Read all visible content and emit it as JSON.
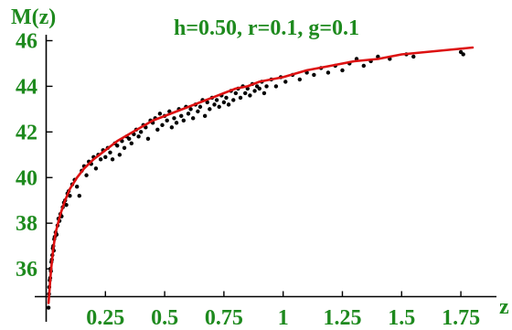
{
  "chart_data": {
    "type": "scatter",
    "title": "h=0.50, r=0.1, g=0.1",
    "ylabel": "M(z)",
    "xlabel": "z",
    "xlim": [
      0,
      1.85
    ],
    "ylim": [
      33.8,
      46.1
    ],
    "x_ticks": [
      "0.25",
      "0.5",
      "0.75",
      "1",
      "1.25",
      "1.5",
      "1.75"
    ],
    "y_ticks": [
      "36",
      "38",
      "40",
      "42",
      "44",
      "46"
    ],
    "colors": {
      "label": "#1e8a1e",
      "fit": "#dd1111",
      "points": "#000000",
      "axis": "#000000"
    },
    "series": [
      {
        "kind": "points",
        "points": [
          [
            0.01,
            34.3
          ],
          [
            0.012,
            34.9
          ],
          [
            0.013,
            35.2
          ],
          [
            0.015,
            35.5
          ],
          [
            0.017,
            35.6
          ],
          [
            0.018,
            36.0
          ],
          [
            0.02,
            35.9
          ],
          [
            0.022,
            36.3
          ],
          [
            0.024,
            36.4
          ],
          [
            0.026,
            36.6
          ],
          [
            0.028,
            36.9
          ],
          [
            0.03,
            37.0
          ],
          [
            0.032,
            36.8
          ],
          [
            0.034,
            37.3
          ],
          [
            0.036,
            37.4
          ],
          [
            0.04,
            37.6
          ],
          [
            0.044,
            37.5
          ],
          [
            0.048,
            37.9
          ],
          [
            0.052,
            38.2
          ],
          [
            0.056,
            38.1
          ],
          [
            0.06,
            38.4
          ],
          [
            0.065,
            38.3
          ],
          [
            0.07,
            38.7
          ],
          [
            0.075,
            38.9
          ],
          [
            0.08,
            39.0
          ],
          [
            0.085,
            38.8
          ],
          [
            0.09,
            39.3
          ],
          [
            0.095,
            39.4
          ],
          [
            0.1,
            39.2
          ],
          [
            0.11,
            39.7
          ],
          [
            0.12,
            39.9
          ],
          [
            0.13,
            39.6
          ],
          [
            0.14,
            39.2
          ],
          [
            0.15,
            40.3
          ],
          [
            0.16,
            40.5
          ],
          [
            0.17,
            40.1
          ],
          [
            0.18,
            40.7
          ],
          [
            0.19,
            40.6
          ],
          [
            0.2,
            40.9
          ],
          [
            0.21,
            40.4
          ],
          [
            0.22,
            41.0
          ],
          [
            0.23,
            40.8
          ],
          [
            0.24,
            41.2
          ],
          [
            0.25,
            40.9
          ],
          [
            0.26,
            41.3
          ],
          [
            0.27,
            41.1
          ],
          [
            0.28,
            40.8
          ],
          [
            0.29,
            41.5
          ],
          [
            0.3,
            41.4
          ],
          [
            0.31,
            41.0
          ],
          [
            0.32,
            41.6
          ],
          [
            0.33,
            41.3
          ],
          [
            0.34,
            41.8
          ],
          [
            0.35,
            41.7
          ],
          [
            0.36,
            41.5
          ],
          [
            0.37,
            41.9
          ],
          [
            0.38,
            42.1
          ],
          [
            0.39,
            41.8
          ],
          [
            0.4,
            42.0
          ],
          [
            0.41,
            42.3
          ],
          [
            0.42,
            42.2
          ],
          [
            0.43,
            41.7
          ],
          [
            0.44,
            42.5
          ],
          [
            0.45,
            42.4
          ],
          [
            0.46,
            42.6
          ],
          [
            0.47,
            42.1
          ],
          [
            0.48,
            42.8
          ],
          [
            0.49,
            42.3
          ],
          [
            0.5,
            42.7
          ],
          [
            0.51,
            42.5
          ],
          [
            0.52,
            42.9
          ],
          [
            0.53,
            42.2
          ],
          [
            0.54,
            42.6
          ],
          [
            0.55,
            42.4
          ],
          [
            0.56,
            43.0
          ],
          [
            0.57,
            42.7
          ],
          [
            0.58,
            42.5
          ],
          [
            0.59,
            43.1
          ],
          [
            0.6,
            42.8
          ],
          [
            0.61,
            43.0
          ],
          [
            0.62,
            42.6
          ],
          [
            0.63,
            43.2
          ],
          [
            0.64,
            42.9
          ],
          [
            0.65,
            43.1
          ],
          [
            0.66,
            43.4
          ],
          [
            0.67,
            42.7
          ],
          [
            0.68,
            43.3
          ],
          [
            0.69,
            43.0
          ],
          [
            0.7,
            43.5
          ],
          [
            0.71,
            43.2
          ],
          [
            0.72,
            43.4
          ],
          [
            0.73,
            43.1
          ],
          [
            0.74,
            43.6
          ],
          [
            0.75,
            43.3
          ],
          [
            0.76,
            43.5
          ],
          [
            0.77,
            43.2
          ],
          [
            0.78,
            43.8
          ],
          [
            0.79,
            43.4
          ],
          [
            0.8,
            43.7
          ],
          [
            0.81,
            43.9
          ],
          [
            0.82,
            43.5
          ],
          [
            0.83,
            44.0
          ],
          [
            0.84,
            43.7
          ],
          [
            0.85,
            43.9
          ],
          [
            0.86,
            43.6
          ],
          [
            0.87,
            44.1
          ],
          [
            0.88,
            43.8
          ],
          [
            0.89,
            44.0
          ],
          [
            0.9,
            43.9
          ],
          [
            0.91,
            44.2
          ],
          [
            0.92,
            43.7
          ],
          [
            0.93,
            44.0
          ],
          [
            0.95,
            44.3
          ],
          [
            0.97,
            44.0
          ],
          [
            0.99,
            44.4
          ],
          [
            1.01,
            44.2
          ],
          [
            1.04,
            44.5
          ],
          [
            1.07,
            44.3
          ],
          [
            1.1,
            44.6
          ],
          [
            1.13,
            44.5
          ],
          [
            1.16,
            44.8
          ],
          [
            1.19,
            44.6
          ],
          [
            1.22,
            44.9
          ],
          [
            1.25,
            44.7
          ],
          [
            1.28,
            45.0
          ],
          [
            1.31,
            45.2
          ],
          [
            1.34,
            44.9
          ],
          [
            1.37,
            45.1
          ],
          [
            1.4,
            45.3
          ],
          [
            1.45,
            45.2
          ],
          [
            1.52,
            45.4
          ],
          [
            1.55,
            45.3
          ],
          [
            1.75,
            45.5
          ],
          [
            1.76,
            45.4
          ]
        ]
      },
      {
        "kind": "fit-curve",
        "points": [
          [
            0.01,
            34.5
          ],
          [
            0.02,
            35.9
          ],
          [
            0.03,
            36.9
          ],
          [
            0.04,
            37.6
          ],
          [
            0.06,
            38.4
          ],
          [
            0.08,
            39.0
          ],
          [
            0.1,
            39.5
          ],
          [
            0.13,
            40.0
          ],
          [
            0.16,
            40.4
          ],
          [
            0.2,
            40.8
          ],
          [
            0.25,
            41.2
          ],
          [
            0.3,
            41.6
          ],
          [
            0.35,
            41.9
          ],
          [
            0.4,
            42.2
          ],
          [
            0.45,
            42.5
          ],
          [
            0.5,
            42.7
          ],
          [
            0.55,
            42.9
          ],
          [
            0.6,
            43.1
          ],
          [
            0.65,
            43.3
          ],
          [
            0.7,
            43.5
          ],
          [
            0.75,
            43.7
          ],
          [
            0.8,
            43.9
          ],
          [
            0.85,
            44.0
          ],
          [
            0.9,
            44.2
          ],
          [
            0.95,
            44.3
          ],
          [
            1.0,
            44.4
          ],
          [
            1.1,
            44.7
          ],
          [
            1.2,
            44.9
          ],
          [
            1.3,
            45.1
          ],
          [
            1.4,
            45.2
          ],
          [
            1.5,
            45.4
          ],
          [
            1.6,
            45.5
          ],
          [
            1.7,
            45.6
          ],
          [
            1.8,
            45.7
          ]
        ]
      }
    ]
  }
}
